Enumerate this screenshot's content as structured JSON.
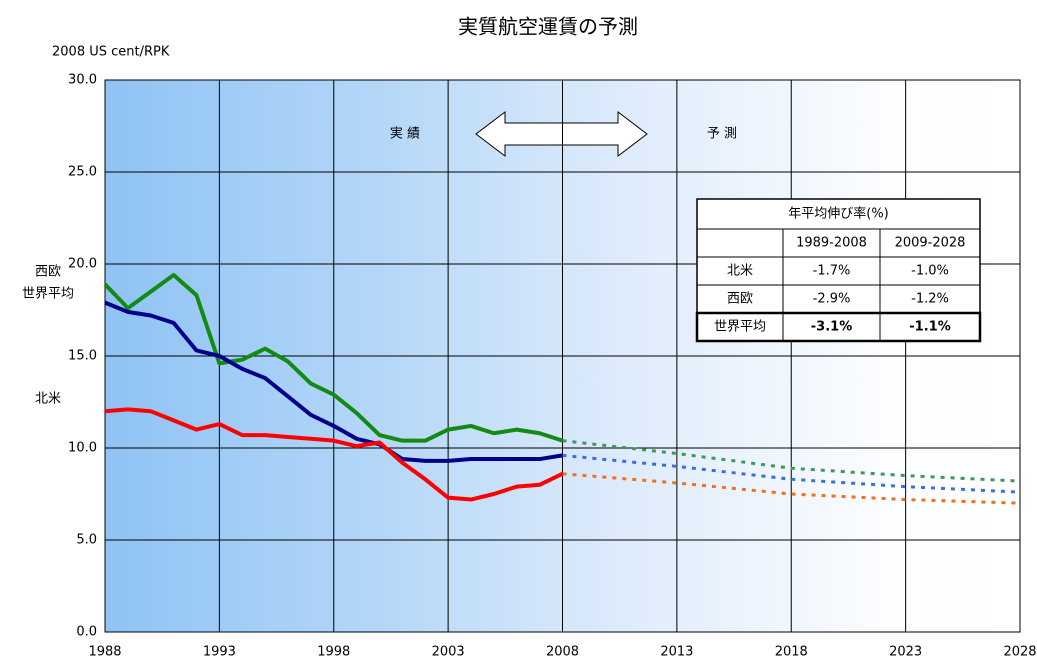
{
  "chart_data": {
    "type": "line",
    "title": "実質航空運賃の予測",
    "y_label": "2008 US cent/RPK",
    "xlim": [
      1988,
      2028
    ],
    "xticks": [
      1988,
      1993,
      1998,
      2003,
      2008,
      2013,
      2018,
      2023,
      2028
    ],
    "ylim": [
      0,
      30
    ],
    "yticks": [
      {
        "value": 0,
        "label": "0.0"
      },
      {
        "value": 5,
        "label": "5.0"
      },
      {
        "value": 10,
        "label": "10.0"
      },
      {
        "value": 15,
        "label": "15.0"
      },
      {
        "value": 20,
        "label": "20.0"
      },
      {
        "value": 25,
        "label": "25.0"
      },
      {
        "value": 30,
        "label": "30.0"
      }
    ],
    "grid": true,
    "annotations": {
      "actual": "実 績",
      "forecast": "予 測"
    },
    "x": [
      1988,
      1989,
      1990,
      1991,
      1992,
      1993,
      1994,
      1995,
      1996,
      1997,
      1998,
      1999,
      2000,
      2001,
      2002,
      2003,
      2004,
      2005,
      2006,
      2007,
      2008
    ],
    "forecast_x": [
      2008,
      2013,
      2018,
      2023,
      2028
    ],
    "series": [
      {
        "name": "西欧",
        "color": "#138a13",
        "forecast_color": "#3a9a5b",
        "values": [
          18.9,
          17.6,
          18.5,
          19.4,
          18.3,
          14.6,
          14.8,
          15.4,
          14.7,
          13.5,
          12.9,
          11.9,
          10.7,
          10.4,
          10.4,
          11.0,
          11.2,
          10.8,
          11.0,
          10.8,
          10.4
        ],
        "forecast_values": [
          10.4,
          9.7,
          8.9,
          8.5,
          8.2
        ]
      },
      {
        "name": "世界平均",
        "color": "#00008b",
        "forecast_color": "#3a6fe0",
        "values": [
          17.9,
          17.4,
          17.2,
          16.8,
          15.3,
          15.0,
          14.3,
          13.8,
          12.8,
          11.8,
          11.2,
          10.5,
          10.2,
          9.4,
          9.3,
          9.3,
          9.4,
          9.4,
          9.4,
          9.4,
          9.6
        ],
        "forecast_values": [
          9.6,
          9.0,
          8.3,
          7.9,
          7.6
        ]
      },
      {
        "name": "北米",
        "color": "#ff0000",
        "forecast_color": "#f07020",
        "values": [
          12.0,
          12.1,
          12.0,
          11.5,
          11.0,
          11.3,
          10.7,
          10.7,
          10.6,
          10.5,
          10.4,
          10.1,
          10.3,
          9.2,
          8.3,
          7.3,
          7.2,
          7.5,
          7.9,
          8.0,
          8.6
        ],
        "forecast_values": [
          8.6,
          8.1,
          7.5,
          7.2,
          7.0
        ]
      }
    ],
    "table": {
      "title": "年平均伸び率(%)",
      "columns": [
        "1989-2008",
        "2009-2028"
      ],
      "rows": [
        [
          "北米",
          "-1.7%",
          "-1.0%"
        ],
        [
          "西欧",
          "-2.9%",
          "-1.2%"
        ],
        [
          "世界平均",
          "-3.1%",
          "-1.1%"
        ]
      ],
      "bold_row": 2
    }
  }
}
